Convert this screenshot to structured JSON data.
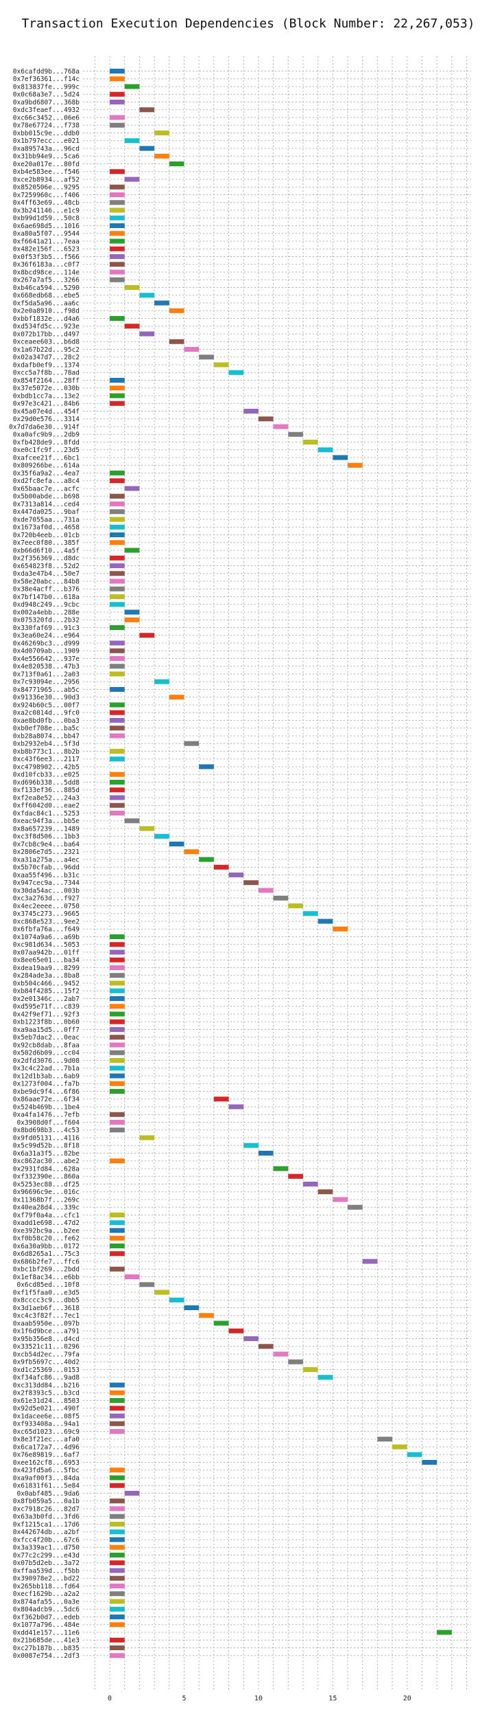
{
  "chart_data": {
    "type": "gantt",
    "title": "Transaction Execution Dependencies (Block Number: 22,267,053)",
    "xlabel": "",
    "ylabel": "",
    "xlim": [
      -1.8,
      24.3
    ],
    "xticks": [
      0,
      5,
      10,
      15,
      20
    ],
    "grid": true,
    "palette": [
      "#1f77b4",
      "#ff7f0e",
      "#2ca02c",
      "#d62728",
      "#9467bd",
      "#8c564b",
      "#e377c2",
      "#7f7f7f",
      "#bcbd22",
      "#17becf"
    ],
    "transactions": [
      {
        "label": "0x6cafdd9b...768a",
        "start": 0,
        "color": 0
      },
      {
        "label": "0x7ef36361...f14c",
        "start": 0,
        "color": 1
      },
      {
        "label": "0x813837fe...999c",
        "start": 1,
        "color": 2
      },
      {
        "label": "0x0c68a3e7...5d24",
        "start": 0,
        "color": 3
      },
      {
        "label": "0xa9bd6807...368b",
        "start": 0,
        "color": 4
      },
      {
        "label": "0xdc3feaef...4932",
        "start": 2,
        "color": 5
      },
      {
        "label": "0xc66c3452...06e6",
        "start": 0,
        "color": 6
      },
      {
        "label": "0x78e67724...f738",
        "start": 0,
        "color": 7
      },
      {
        "label": "0xbb015c9e...ddb0",
        "start": 3,
        "color": 8
      },
      {
        "label": "0x1b797ecc...e021",
        "start": 1,
        "color": 9
      },
      {
        "label": "0xa895743a...96cd",
        "start": 2,
        "color": 0
      },
      {
        "label": "0x31bb94e9...5ca6",
        "start": 3,
        "color": 1
      },
      {
        "label": "0xe20a017e...80fd",
        "start": 4,
        "color": 2
      },
      {
        "label": "0xb4e583ee...f546",
        "start": 0,
        "color": 3
      },
      {
        "label": "0xce2b8934...af52",
        "start": 1,
        "color": 4
      },
      {
        "label": "0x8520506e...9295",
        "start": 0,
        "color": 5
      },
      {
        "label": "0x7259960c...f406",
        "start": 0,
        "color": 6
      },
      {
        "label": "0x4ff63e69...48cb",
        "start": 0,
        "color": 7
      },
      {
        "label": "0x3b241146...e1c9",
        "start": 0,
        "color": 8
      },
      {
        "label": "0xb99d1d59...50c8",
        "start": 0,
        "color": 9
      },
      {
        "label": "0x6ae698d5...1016",
        "start": 0,
        "color": 0
      },
      {
        "label": "0xa80a5f07...9544",
        "start": 0,
        "color": 1
      },
      {
        "label": "0xf6641a21...7eaa",
        "start": 0,
        "color": 2
      },
      {
        "label": "0x482e156f...6523",
        "start": 0,
        "color": 3
      },
      {
        "label": "0x0f53f3b5...f566",
        "start": 0,
        "color": 4
      },
      {
        "label": "0x36f6183a...c0f7",
        "start": 0,
        "color": 5
      },
      {
        "label": "0x8bcd98ce...114e",
        "start": 0,
        "color": 6
      },
      {
        "label": "0x267a7af5...3266",
        "start": 0,
        "color": 7
      },
      {
        "label": "0xb46ca594...5290",
        "start": 1,
        "color": 8
      },
      {
        "label": "0x668edb68...ebe5",
        "start": 2,
        "color": 9
      },
      {
        "label": "0xf5da5a96...aa6c",
        "start": 3,
        "color": 0
      },
      {
        "label": "0x2e0a8910...f98d",
        "start": 4,
        "color": 1
      },
      {
        "label": "0xbbf1832e...d4a6",
        "start": 0,
        "color": 2
      },
      {
        "label": "0xd534fd5c...923e",
        "start": 1,
        "color": 3
      },
      {
        "label": "0x072b17bb...d497",
        "start": 2,
        "color": 4
      },
      {
        "label": "0xceaee603...b6d8",
        "start": 4,
        "color": 5
      },
      {
        "label": "0x1a67b22d...95c2",
        "start": 5,
        "color": 6
      },
      {
        "label": "0x02a347d7...28c2",
        "start": 6,
        "color": 7
      },
      {
        "label": "0xdafb0ef9...1374",
        "start": 7,
        "color": 8
      },
      {
        "label": "0xcc5a7f8b...78ad",
        "start": 8,
        "color": 9
      },
      {
        "label": "0x854f2164...28ff",
        "start": 0,
        "color": 0
      },
      {
        "label": "0x37e5072e...030b",
        "start": 0,
        "color": 1
      },
      {
        "label": "0xbdb1cc7a...13e2",
        "start": 0,
        "color": 2
      },
      {
        "label": "0x97e3c421...84b6",
        "start": 0,
        "color": 3
      },
      {
        "label": "0x45a07e4d...454f",
        "start": 9,
        "color": 4
      },
      {
        "label": "0x29d0e576...3314",
        "start": 10,
        "color": 5
      },
      {
        "label": "0x7d7da6e30...914f",
        "start": 11,
        "color": 6
      },
      {
        "label": "0xa0afc9b9...2db9",
        "start": 12,
        "color": 7
      },
      {
        "label": "0xfb428de9...8fdd",
        "start": 13,
        "color": 8
      },
      {
        "label": "0xe0c1fc9f...23d5",
        "start": 14,
        "color": 9
      },
      {
        "label": "0xafcee21f...6bc1",
        "start": 15,
        "color": 0
      },
      {
        "label": "0x809266be...614a",
        "start": 16,
        "color": 1
      },
      {
        "label": "0x35f6a9a2...4ea7",
        "start": 0,
        "color": 2
      },
      {
        "label": "0xd2fc8efa...a8c4",
        "start": 0,
        "color": 3
      },
      {
        "label": "0x65baac7e...acfc",
        "start": 1,
        "color": 4
      },
      {
        "label": "0x5b00abde...b698",
        "start": 0,
        "color": 5
      },
      {
        "label": "0x7313a814...ced4",
        "start": 0,
        "color": 6
      },
      {
        "label": "0x447da025...9baf",
        "start": 0,
        "color": 7
      },
      {
        "label": "0xde7055aa...731a",
        "start": 0,
        "color": 8
      },
      {
        "label": "0x1673af0d...4658",
        "start": 0,
        "color": 9
      },
      {
        "label": "0x720b4eeb...01cb",
        "start": 0,
        "color": 0
      },
      {
        "label": "0x7eec0f80...385f",
        "start": 0,
        "color": 1
      },
      {
        "label": "0xb66d6f10...4a5f",
        "start": 1,
        "color": 2
      },
      {
        "label": "0x2f356369...d8dc",
        "start": 0,
        "color": 3
      },
      {
        "label": "0x654823f8...52d2",
        "start": 0,
        "color": 4
      },
      {
        "label": "0xda3e47b4...50e7",
        "start": 0,
        "color": 5
      },
      {
        "label": "0x58e20abc...84b8",
        "start": 0,
        "color": 6
      },
      {
        "label": "0x38e4acff...b376",
        "start": 0,
        "color": 7
      },
      {
        "label": "0x7bf147b0...618a",
        "start": 0,
        "color": 8
      },
      {
        "label": "0xd948c249...9cbc",
        "start": 0,
        "color": 9
      },
      {
        "label": "0x002a4ebb...288e",
        "start": 1,
        "color": 0
      },
      {
        "label": "0x075320fd...2b32",
        "start": 1,
        "color": 1
      },
      {
        "label": "0x330faf69...91c3",
        "start": 0,
        "color": 2
      },
      {
        "label": "0x3ea60e24...e964",
        "start": 2,
        "color": 3
      },
      {
        "label": "0x46269bc3...d999",
        "start": 0,
        "color": 4
      },
      {
        "label": "0x4d0709ab...1909",
        "start": 0,
        "color": 5
      },
      {
        "label": "0x4e556642...937e",
        "start": 0,
        "color": 6
      },
      {
        "label": "0x4e820538...47b3",
        "start": 0,
        "color": 7
      },
      {
        "label": "0x713f0a61...2a03",
        "start": 0,
        "color": 8
      },
      {
        "label": "0x7c93094e...2956",
        "start": 3,
        "color": 9
      },
      {
        "label": "0x84771965...ab5c",
        "start": 0,
        "color": 0
      },
      {
        "label": "0x91336e30...90d3",
        "start": 4,
        "color": 1
      },
      {
        "label": "0x924b60c5...00f7",
        "start": 0,
        "color": 2
      },
      {
        "label": "0xa2c0814d...9fc0",
        "start": 0,
        "color": 3
      },
      {
        "label": "0xae8bd0fb...0ba3",
        "start": 0,
        "color": 4
      },
      {
        "label": "0xb0ef708e...ba5c",
        "start": 0,
        "color": 5
      },
      {
        "label": "0xb28a8074...bb47",
        "start": 0,
        "color": 6
      },
      {
        "label": "0xb2932eb4...5f3d",
        "start": 5,
        "color": 7
      },
      {
        "label": "0xb8b773c1...8b2b",
        "start": 0,
        "color": 8
      },
      {
        "label": "0xc43f6ee3...2117",
        "start": 0,
        "color": 9
      },
      {
        "label": "0xc4798902...42b5",
        "start": 6,
        "color": 0
      },
      {
        "label": "0xd10fcb33...e025",
        "start": 0,
        "color": 1
      },
      {
        "label": "0xd696b338...5dd8",
        "start": 0,
        "color": 2
      },
      {
        "label": "0xf133ef36...885d",
        "start": 0,
        "color": 3
      },
      {
        "label": "0xf2ea8e52...24a3",
        "start": 0,
        "color": 4
      },
      {
        "label": "0xff6042d0...eae2",
        "start": 0,
        "color": 5
      },
      {
        "label": "0xfdac84c1...5253",
        "start": 0,
        "color": 6
      },
      {
        "label": "0xeac94f3a...bb5e",
        "start": 1,
        "color": 7
      },
      {
        "label": "0x8a657239...1489",
        "start": 2,
        "color": 8
      },
      {
        "label": "0xc3f8d506...1bb3",
        "start": 3,
        "color": 9
      },
      {
        "label": "0x7cb8c9e4...ba64",
        "start": 4,
        "color": 0
      },
      {
        "label": "0x2806e7d5...2321",
        "start": 5,
        "color": 1
      },
      {
        "label": "0xa31a275a...a4ec",
        "start": 6,
        "color": 2
      },
      {
        "label": "0x5b70cfab...96dd",
        "start": 7,
        "color": 3
      },
      {
        "label": "0xaa55f496...b31c",
        "start": 8,
        "color": 4
      },
      {
        "label": "0x947cec9a...7344",
        "start": 9,
        "color": 5
      },
      {
        "label": "0x30da54ac...003b",
        "start": 10,
        "color": 6
      },
      {
        "label": "0xc3a2763d...f927",
        "start": 11,
        "color": 7
      },
      {
        "label": "0x4ec2eeee...0750",
        "start": 12,
        "color": 8
      },
      {
        "label": "0x3745c273...9665",
        "start": 13,
        "color": 9
      },
      {
        "label": "0xc868e523...9ee2",
        "start": 14,
        "color": 0
      },
      {
        "label": "0x6fbfa76a...f649",
        "start": 15,
        "color": 1
      },
      {
        "label": "0x1074a9a6...a69b",
        "start": 0,
        "color": 2
      },
      {
        "label": "0xc981d634...5053",
        "start": 0,
        "color": 3
      },
      {
        "label": "0x07aa942b...01ff",
        "start": 0,
        "color": 4
      },
      {
        "label": "0x8ee65e01...ba34",
        "start": 0,
        "color": 3
      },
      {
        "label": "0xdea19aa9...8299",
        "start": 0,
        "color": 6
      },
      {
        "label": "0x284ade3a...8ba8",
        "start": 0,
        "color": 7
      },
      {
        "label": "0xb504c466...9452",
        "start": 0,
        "color": 8
      },
      {
        "label": "0xb84f4285...15f2",
        "start": 0,
        "color": 9
      },
      {
        "label": "0x2e01346c...2ab7",
        "start": 0,
        "color": 0
      },
      {
        "label": "0xd595e71f...c839",
        "start": 0,
        "color": 1
      },
      {
        "label": "0x42f9ef71...92f3",
        "start": 0,
        "color": 2
      },
      {
        "label": "0xb1223f8b...0b60",
        "start": 0,
        "color": 3
      },
      {
        "label": "0xa9aa15d5...0ff7",
        "start": 0,
        "color": 4
      },
      {
        "label": "0x5eb7dac2...0eac",
        "start": 0,
        "color": 5
      },
      {
        "label": "0x92cb8dab...8faa",
        "start": 0,
        "color": 6
      },
      {
        "label": "0x502d6b09...cc04",
        "start": 0,
        "color": 7
      },
      {
        "label": "0x2dfd3076...9d08",
        "start": 0,
        "color": 8
      },
      {
        "label": "0x3c4c22ad...7b1a",
        "start": 0,
        "color": 9
      },
      {
        "label": "0x12d1b3ab...6ab9",
        "start": 0,
        "color": 0
      },
      {
        "label": "0x1273f004...fa7b",
        "start": 0,
        "color": 1
      },
      {
        "label": "0xbe9dc9f4...6f86",
        "start": 0,
        "color": 2
      },
      {
        "label": "0x86aae72e...6f34",
        "start": 7,
        "color": 3
      },
      {
        "label": "0x524b469b...1be4",
        "start": 8,
        "color": 4
      },
      {
        "label": "0xa4fa1476...7efb",
        "start": 0,
        "color": 5
      },
      {
        "label": "0x3908d0f...f604",
        "start": 0,
        "color": 6
      },
      {
        "label": "0x8bd698b3...4c53",
        "start": 0,
        "color": 7
      },
      {
        "label": "0x9fd05131...4116",
        "start": 2,
        "color": 8
      },
      {
        "label": "0x5c99d52b...8f18",
        "start": 9,
        "color": 9
      },
      {
        "label": "0x6a31a3f5...82be",
        "start": 10,
        "color": 0
      },
      {
        "label": "0xc862ac30...abe2",
        "start": 0,
        "color": 1
      },
      {
        "label": "0x2931fd84...628a",
        "start": 11,
        "color": 2
      },
      {
        "label": "0xf332390e...860a",
        "start": 12,
        "color": 3
      },
      {
        "label": "0x5253ec88...df25",
        "start": 13,
        "color": 4
      },
      {
        "label": "0x96696c9e...016c",
        "start": 14,
        "color": 5
      },
      {
        "label": "0x11368b7f...269c",
        "start": 15,
        "color": 6
      },
      {
        "label": "0x40ea28d4...339c",
        "start": 16,
        "color": 7
      },
      {
        "label": "0xf79f0a4a...cfc1",
        "start": 0,
        "color": 8
      },
      {
        "label": "0xadd1e698...47d2",
        "start": 0,
        "color": 9
      },
      {
        "label": "0xe392bc9a...b2ee",
        "start": 0,
        "color": 0
      },
      {
        "label": "0xf0b58c20...fe62",
        "start": 0,
        "color": 1
      },
      {
        "label": "0x6a30a9bb...0172",
        "start": 0,
        "color": 2
      },
      {
        "label": "0x6d8265a1...75c3",
        "start": 0,
        "color": 3
      },
      {
        "label": "0x686b2fe7...ffc6",
        "start": 17,
        "color": 4
      },
      {
        "label": "0xbc1bf269...2bdd",
        "start": 0,
        "color": 5
      },
      {
        "label": "0x1ef8ac34...e6bb",
        "start": 1,
        "color": 6
      },
      {
        "label": "0x6cd85ed...10f8",
        "start": 2,
        "color": 7
      },
      {
        "label": "0xf1f5faa0...e3d5",
        "start": 3,
        "color": 8
      },
      {
        "label": "0x8cccc3c9...dbb5",
        "start": 4,
        "color": 9
      },
      {
        "label": "0x3d1aeb6f...3618",
        "start": 5,
        "color": 0
      },
      {
        "label": "0xc4c3f82f...7ec1",
        "start": 6,
        "color": 1
      },
      {
        "label": "0xaab5950e...097b",
        "start": 7,
        "color": 2
      },
      {
        "label": "0x1f6d9bce...a791",
        "start": 8,
        "color": 3
      },
      {
        "label": "0x95b356e8...d4cd",
        "start": 9,
        "color": 4
      },
      {
        "label": "0x33521c11...0296",
        "start": 10,
        "color": 5
      },
      {
        "label": "0xcb54d2ec...79fa",
        "start": 11,
        "color": 6
      },
      {
        "label": "0x9fb5697c...40d2",
        "start": 12,
        "color": 7
      },
      {
        "label": "0xd1c25369...0153",
        "start": 13,
        "color": 8
      },
      {
        "label": "0xf34afc86...9ad8",
        "start": 14,
        "color": 9
      },
      {
        "label": "0xc313dd84...b216",
        "start": 0,
        "color": 0
      },
      {
        "label": "0x2f8393c5...b3cd",
        "start": 0,
        "color": 1
      },
      {
        "label": "0x61e31d24...8503",
        "start": 0,
        "color": 2
      },
      {
        "label": "0x92d5e021...490f",
        "start": 0,
        "color": 3
      },
      {
        "label": "0x1dacee6e...08f5",
        "start": 0,
        "color": 4
      },
      {
        "label": "0xf933408a...94a1",
        "start": 0,
        "color": 5
      },
      {
        "label": "0xc65d1023...69c9",
        "start": 0,
        "color": 6
      },
      {
        "label": "0x8e3f21ec...afa0",
        "start": 18,
        "color": 7
      },
      {
        "label": "0x6ca172a7...4d96",
        "start": 19,
        "color": 8
      },
      {
        "label": "0x76e89819...6af7",
        "start": 20,
        "color": 9
      },
      {
        "label": "0xee162cf8...6953",
        "start": 21,
        "color": 0
      },
      {
        "label": "0x423fd5a6...5fbc",
        "start": 0,
        "color": 1
      },
      {
        "label": "0xa9af00f3...84da",
        "start": 0,
        "color": 2
      },
      {
        "label": "0x61831f61...5e84",
        "start": 0,
        "color": 3
      },
      {
        "label": "0x0abf485...9da6",
        "start": 1,
        "color": 4
      },
      {
        "label": "0x8fb059a5...0a1b",
        "start": 0,
        "color": 5
      },
      {
        "label": "0xc7918c26...82d7",
        "start": 0,
        "color": 6
      },
      {
        "label": "0x63a3b0fd...3fd6",
        "start": 0,
        "color": 7
      },
      {
        "label": "0xf1215ca1...17d6",
        "start": 0,
        "color": 8
      },
      {
        "label": "0x442674db...a2bf",
        "start": 0,
        "color": 9
      },
      {
        "label": "0xfcc4f20b...67c6",
        "start": 0,
        "color": 0
      },
      {
        "label": "0x3a339ac1...d750",
        "start": 0,
        "color": 1
      },
      {
        "label": "0x77c2c299...e43d",
        "start": 0,
        "color": 2
      },
      {
        "label": "0x07b5d2eb...3a72",
        "start": 0,
        "color": 3
      },
      {
        "label": "0xffaa539d...f5bb",
        "start": 0,
        "color": 4
      },
      {
        "label": "0x390978e2...bd22",
        "start": 0,
        "color": 5
      },
      {
        "label": "0x265bb118...fd64",
        "start": 0,
        "color": 6
      },
      {
        "label": "0xecf1629b...a2a2",
        "start": 0,
        "color": 7
      },
      {
        "label": "0x874afa55...0a3e",
        "start": 0,
        "color": 8
      },
      {
        "label": "0x804adcb9...5dc6",
        "start": 0,
        "color": 9
      },
      {
        "label": "0xf362b0d7...edeb",
        "start": 0,
        "color": 0
      },
      {
        "label": "0x1077a796...484e",
        "start": 0,
        "color": 1
      },
      {
        "label": "0xdd41e157...11e6",
        "start": 22,
        "color": 2
      },
      {
        "label": "0x21b685de...41e3",
        "start": 0,
        "color": 3
      },
      {
        "label": "0xc27b187b...b835",
        "start": 0,
        "color": 5
      },
      {
        "label": "0x0087e754...2df3",
        "start": 0,
        "color": 6
      }
    ]
  }
}
